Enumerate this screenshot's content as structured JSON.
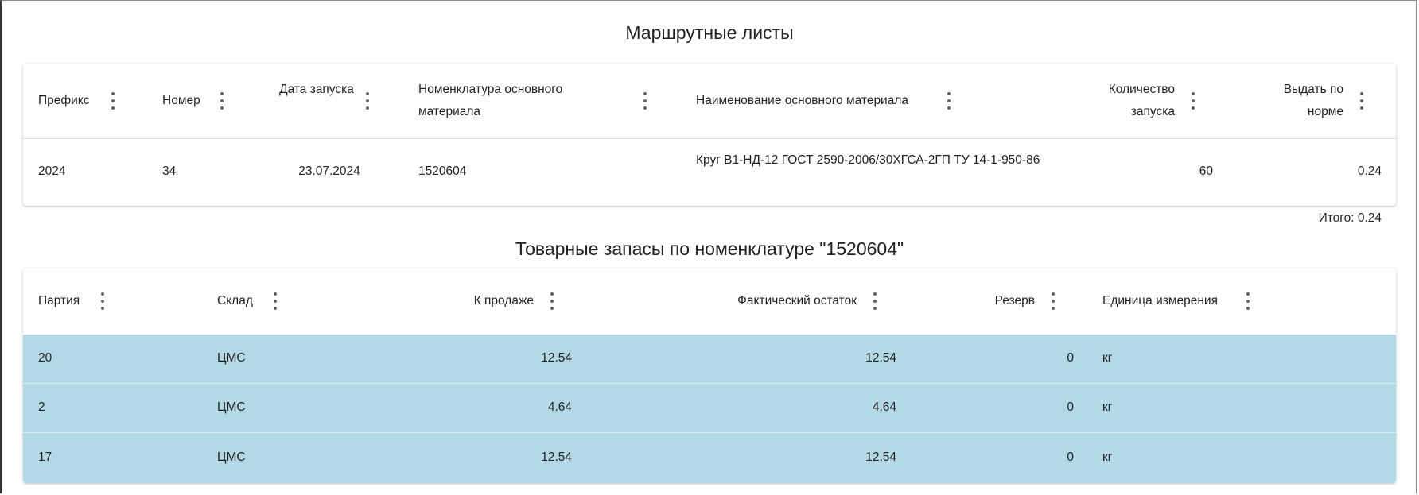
{
  "route_sheets": {
    "title": "Маршрутные листы",
    "columns": [
      "Префикс",
      "Номер",
      "Дата запуска",
      "Номенклатура основного материала",
      "Наименование основного материала",
      "Количество запуска",
      "Выдать по норме"
    ],
    "rows": [
      {
        "prefix": "2024",
        "number": "34",
        "date": "23.07.2024",
        "nomenclature": "1520604",
        "name": "Круг В1-НД-12 ГОСТ 2590-2006/30ХГСА-2ГП ТУ 14-1-950-86",
        "quantity": "60",
        "norm": "0.24"
      }
    ],
    "total": "Итого: 0.24"
  },
  "stock": {
    "title": "Товарные запасы по номенклатуре \"1520604\"",
    "columns": [
      "Партия",
      "Склад",
      "К продаже",
      "Фактический остаток",
      "Резерв",
      "Единица измерения"
    ],
    "rows": [
      {
        "batch": "20",
        "warehouse": "ЦМС",
        "for_sale": "12.54",
        "actual": "12.54",
        "reserve": "0",
        "unit": "кг"
      },
      {
        "batch": "2",
        "warehouse": "ЦМС",
        "for_sale": "4.64",
        "actual": "4.64",
        "reserve": "0",
        "unit": "кг"
      },
      {
        "batch": "17",
        "warehouse": "ЦМС",
        "for_sale": "12.54",
        "actual": "12.54",
        "reserve": "0",
        "unit": "кг"
      }
    ],
    "row_color": "#b3d9e6"
  }
}
